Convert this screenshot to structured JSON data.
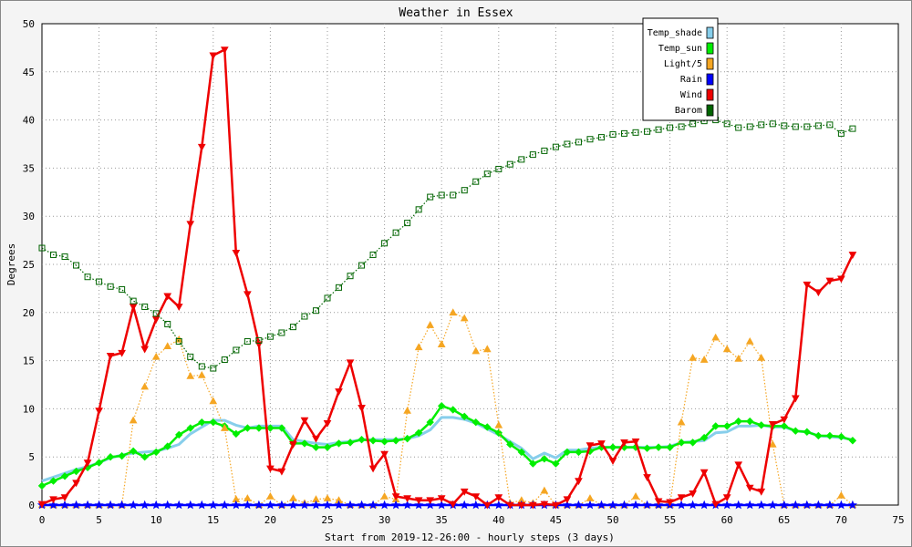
{
  "chart_data": {
    "type": "line",
    "title": "Weather in Essex",
    "xlabel": "Start from 2019-12-26:00 - hourly steps (3 days)",
    "ylabel": "Degrees",
    "xlim": [
      0,
      75
    ],
    "ylim": [
      0,
      50
    ],
    "xticks": [
      0,
      5,
      10,
      15,
      20,
      25,
      30,
      35,
      40,
      45,
      50,
      55,
      60,
      65,
      70,
      75
    ],
    "yticks": [
      0,
      5,
      10,
      15,
      20,
      25,
      30,
      35,
      40,
      45,
      50
    ],
    "grid": true,
    "legend_position": "top-right",
    "series": [
      {
        "name": "Temp_shade",
        "color": "#87ceeb",
        "style": "solid",
        "marker": "none",
        "values": [
          2.5,
          2.9,
          3.3,
          3.7,
          4.0,
          4.4,
          4.9,
          5.2,
          5.4,
          5.5,
          5.6,
          5.9,
          6.3,
          7.4,
          8.1,
          8.8,
          8.8,
          8.3,
          8.0,
          8.2,
          8.2,
          8.2,
          6.8,
          6.6,
          6.4,
          6.3,
          6.5,
          6.6,
          6.8,
          6.8,
          6.8,
          6.8,
          6.9,
          7.2,
          7.8,
          9.1,
          9.1,
          8.9,
          8.5,
          7.9,
          7.3,
          6.6,
          5.9,
          4.8,
          5.4,
          4.9,
          5.7,
          5.7,
          5.9,
          6.0,
          6.0,
          6.0,
          6.0,
          6.0,
          6.0,
          6.1,
          6.5,
          6.6,
          6.7,
          7.5,
          7.6,
          8.2,
          8.2,
          8.3,
          8.1,
          8.1,
          7.7,
          7.6,
          7.2,
          7.1,
          7.0,
          6.8
        ]
      },
      {
        "name": "Temp_sun",
        "color": "#00ee00",
        "style": "solid",
        "marker": "diamond",
        "values": [
          2.0,
          2.5,
          3.0,
          3.5,
          3.9,
          4.4,
          5.0,
          5.1,
          5.6,
          5.0,
          5.5,
          6.1,
          7.3,
          8.0,
          8.6,
          8.6,
          8.2,
          7.4,
          8.0,
          8.0,
          8.0,
          8.0,
          6.4,
          6.4,
          6.0,
          6.0,
          6.4,
          6.5,
          6.8,
          6.7,
          6.6,
          6.7,
          6.9,
          7.5,
          8.6,
          10.3,
          9.9,
          9.2,
          8.6,
          8.1,
          7.5,
          6.3,
          5.5,
          4.3,
          4.8,
          4.3,
          5.5,
          5.5,
          5.6,
          6.0,
          6.0,
          6.0,
          6.0,
          5.9,
          6.0,
          6.0,
          6.5,
          6.5,
          7.0,
          8.2,
          8.2,
          8.7,
          8.7,
          8.3,
          8.2,
          8.2,
          7.7,
          7.6,
          7.2,
          7.2,
          7.1,
          6.7
        ]
      },
      {
        "name": "Light/5",
        "color": "#f5a623",
        "style": "dotted",
        "marker": "triangle",
        "values": [
          0,
          0,
          0,
          0,
          0,
          0,
          0,
          0,
          8.8,
          12.3,
          15.4,
          16.5,
          17.2,
          13.4,
          13.5,
          10.8,
          8.0,
          0.6,
          0.7,
          0,
          0.9,
          0,
          0.7,
          0.2,
          0.6,
          0.7,
          0.5,
          0,
          0,
          0,
          0.9,
          0.6,
          9.8,
          16.4,
          18.7,
          16.7,
          20.0,
          19.4,
          16.0,
          16.2,
          8.3,
          0.2,
          0.5,
          0.2,
          1.5,
          0,
          0,
          0,
          0.7,
          0,
          0,
          0,
          0.9,
          0,
          0,
          0,
          8.6,
          15.3,
          15.1,
          17.4,
          16.2,
          15.2,
          17.0,
          15.3,
          6.3,
          0,
          0,
          0,
          0,
          0,
          1.0,
          0
        ]
      },
      {
        "name": "Rain",
        "color": "#0000ff",
        "style": "solid",
        "marker": "star",
        "values": [
          0,
          0,
          0,
          0,
          0,
          0,
          0,
          0,
          0,
          0,
          0,
          0,
          0,
          0,
          0,
          0,
          0,
          0,
          0,
          0,
          0,
          0,
          0,
          0,
          0,
          0,
          0,
          0,
          0,
          0,
          0,
          0,
          0,
          0,
          0,
          0,
          0,
          0,
          0,
          0,
          0,
          0,
          0,
          0,
          0,
          0,
          0,
          0,
          0,
          0,
          0,
          0,
          0,
          0,
          0,
          0,
          0,
          0,
          0,
          0,
          0,
          0,
          0,
          0,
          0,
          0,
          0,
          0,
          0,
          0,
          0,
          0
        ]
      },
      {
        "name": "Wind",
        "color": "#ee0000",
        "style": "solid",
        "marker": "triangle-down",
        "values": [
          0.1,
          0.6,
          0.8,
          2.3,
          4.4,
          9.8,
          15.5,
          15.8,
          20.6,
          16.2,
          19.3,
          21.7,
          20.6,
          29.2,
          37.2,
          46.7,
          47.3,
          26.2,
          21.9,
          16.7,
          3.8,
          3.5,
          6.3,
          8.8,
          6.9,
          8.5,
          11.8,
          14.8,
          10.1,
          3.8,
          5.3,
          0.9,
          0.7,
          0.5,
          0.5,
          0.7,
          0.1,
          1.4,
          0.9,
          0,
          0.8,
          0,
          0,
          0,
          0.1,
          0,
          0.6,
          2.5,
          6.2,
          6.4,
          4.6,
          6.5,
          6.6,
          2.9,
          0.4,
          0.3,
          0.8,
          1.2,
          3.4,
          0.1,
          0.8,
          4.2,
          1.8,
          1.4,
          8.4,
          8.9,
          11.1,
          22.9,
          22.1,
          23.3,
          23.5,
          26.0
        ]
      },
      {
        "name": "Barom",
        "color": "#006400",
        "style": "dotted",
        "marker": "square",
        "values": [
          26.7,
          26.0,
          25.8,
          24.9,
          23.7,
          23.2,
          22.7,
          22.4,
          21.2,
          20.6,
          19.9,
          18.8,
          17.0,
          15.4,
          14.4,
          14.2,
          15.1,
          16.1,
          17.0,
          17.1,
          17.5,
          17.9,
          18.5,
          19.6,
          20.2,
          21.5,
          22.6,
          23.8,
          24.9,
          26.0,
          27.2,
          28.3,
          29.3,
          30.7,
          32.0,
          32.2,
          32.2,
          32.7,
          33.6,
          34.4,
          34.9,
          35.4,
          35.9,
          36.4,
          36.8,
          37.2,
          37.5,
          37.7,
          38.0,
          38.2,
          38.5,
          38.6,
          38.7,
          38.8,
          39.0,
          39.2,
          39.3,
          39.6,
          39.9,
          40.0,
          39.6,
          39.2,
          39.3,
          39.5,
          39.6,
          39.4,
          39.3,
          39.3,
          39.4,
          39.5,
          38.6,
          39.1
        ]
      }
    ]
  }
}
